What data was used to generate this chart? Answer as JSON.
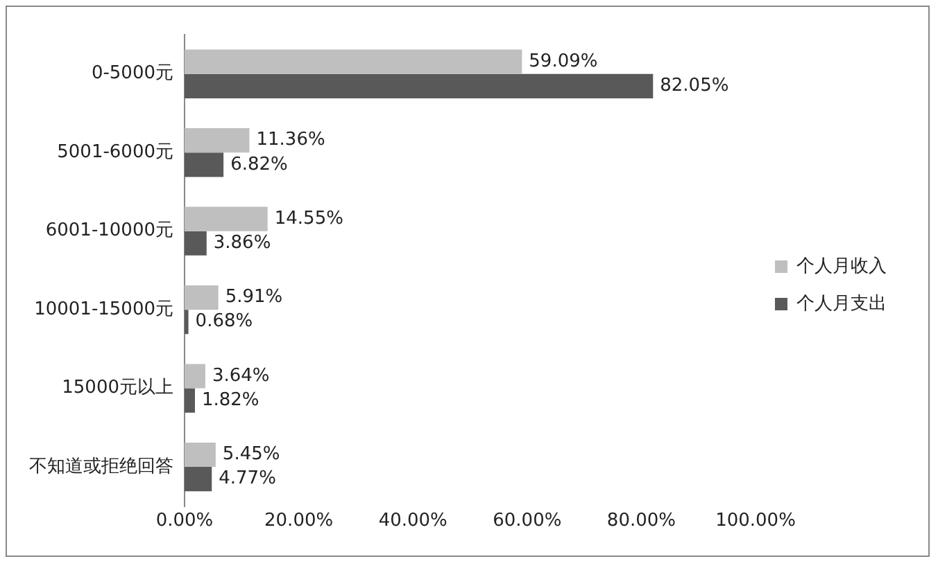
{
  "chart_data": {
    "type": "bar",
    "orientation": "horizontal",
    "categories": [
      "0-5000元",
      "5001-6000元",
      "6001-10000元",
      "10001-15000元",
      "15000元以上",
      "不知道或拒绝回答"
    ],
    "series": [
      {
        "name": "个人月收入",
        "color": "#bfbfbf",
        "values": [
          59.09,
          11.36,
          14.55,
          5.91,
          3.64,
          5.45
        ],
        "value_labels": [
          "59.09%",
          "11.36%",
          "14.55%",
          "5.91%",
          "3.64%",
          "5.45%"
        ]
      },
      {
        "name": "个人月支出",
        "color": "#595959",
        "values": [
          82.05,
          6.82,
          3.86,
          0.68,
          1.82,
          4.77
        ],
        "value_labels": [
          "82.05%",
          "6.82%",
          "3.86%",
          "0.68%",
          "1.82%",
          "4.77%"
        ]
      }
    ],
    "xlim": [
      0,
      100
    ],
    "xticks": [
      {
        "value": 0,
        "label": "0.00%"
      },
      {
        "value": 20,
        "label": "20.00%"
      },
      {
        "value": 40,
        "label": "40.00%"
      },
      {
        "value": 60,
        "label": "60.00%"
      },
      {
        "value": 80,
        "label": "80.00%"
      },
      {
        "value": 100,
        "label": "100.00%"
      }
    ],
    "grid": false,
    "legend": "right"
  }
}
